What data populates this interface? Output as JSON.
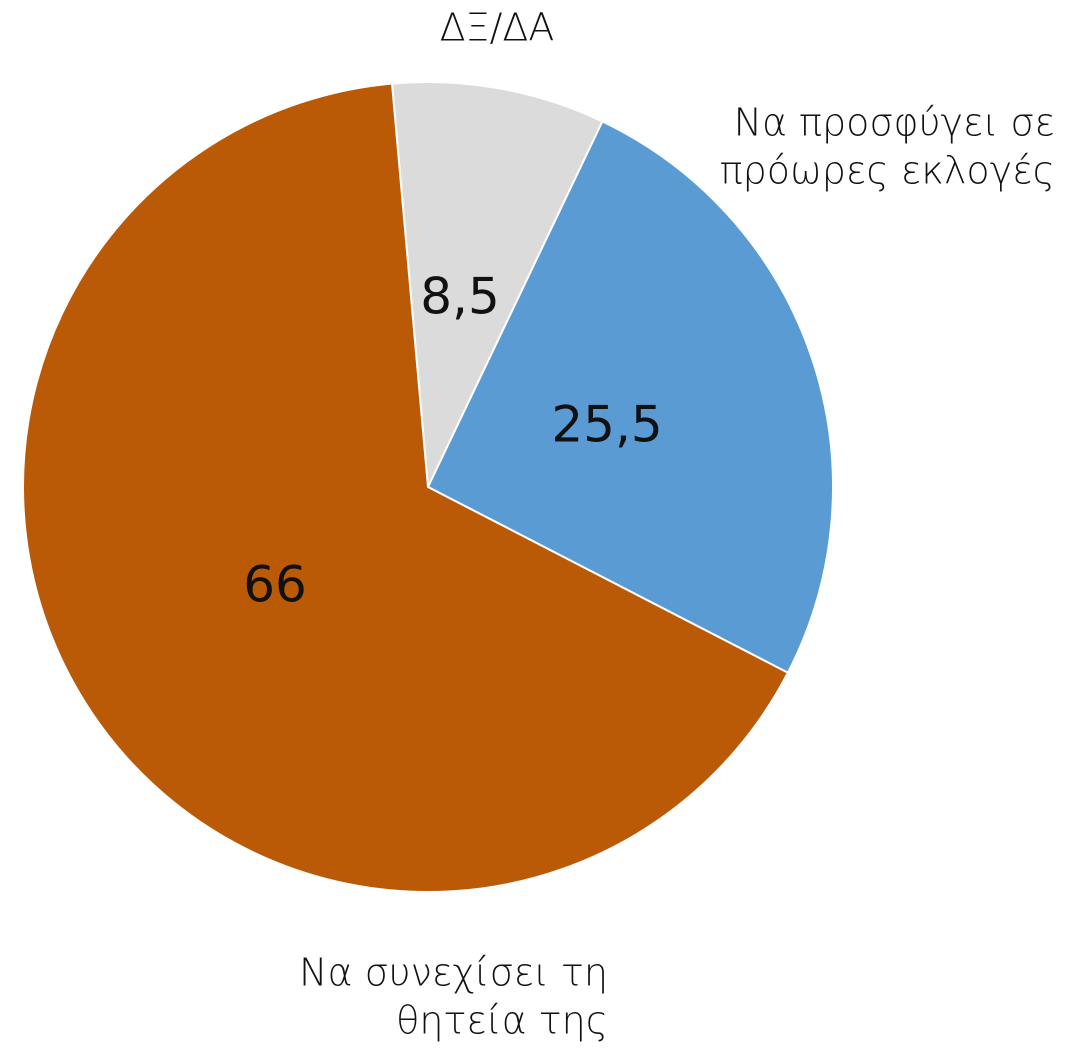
{
  "chart_data": {
    "type": "pie",
    "categories": [
      [
        "ΔΞ/ΔΑ"
      ],
      [
        "Να προσφύγει  σε",
        "πρόωρες εκλογές"
      ],
      [
        "Να συνεχίσει τη",
        "θητεία της"
      ]
    ],
    "values": [
      8.5,
      25.5,
      66
    ],
    "value_labels": [
      "8,5",
      "25,5",
      "66"
    ],
    "colors": [
      "#dbdbdb",
      "#5b9bd3",
      "#bb5a06"
    ]
  }
}
